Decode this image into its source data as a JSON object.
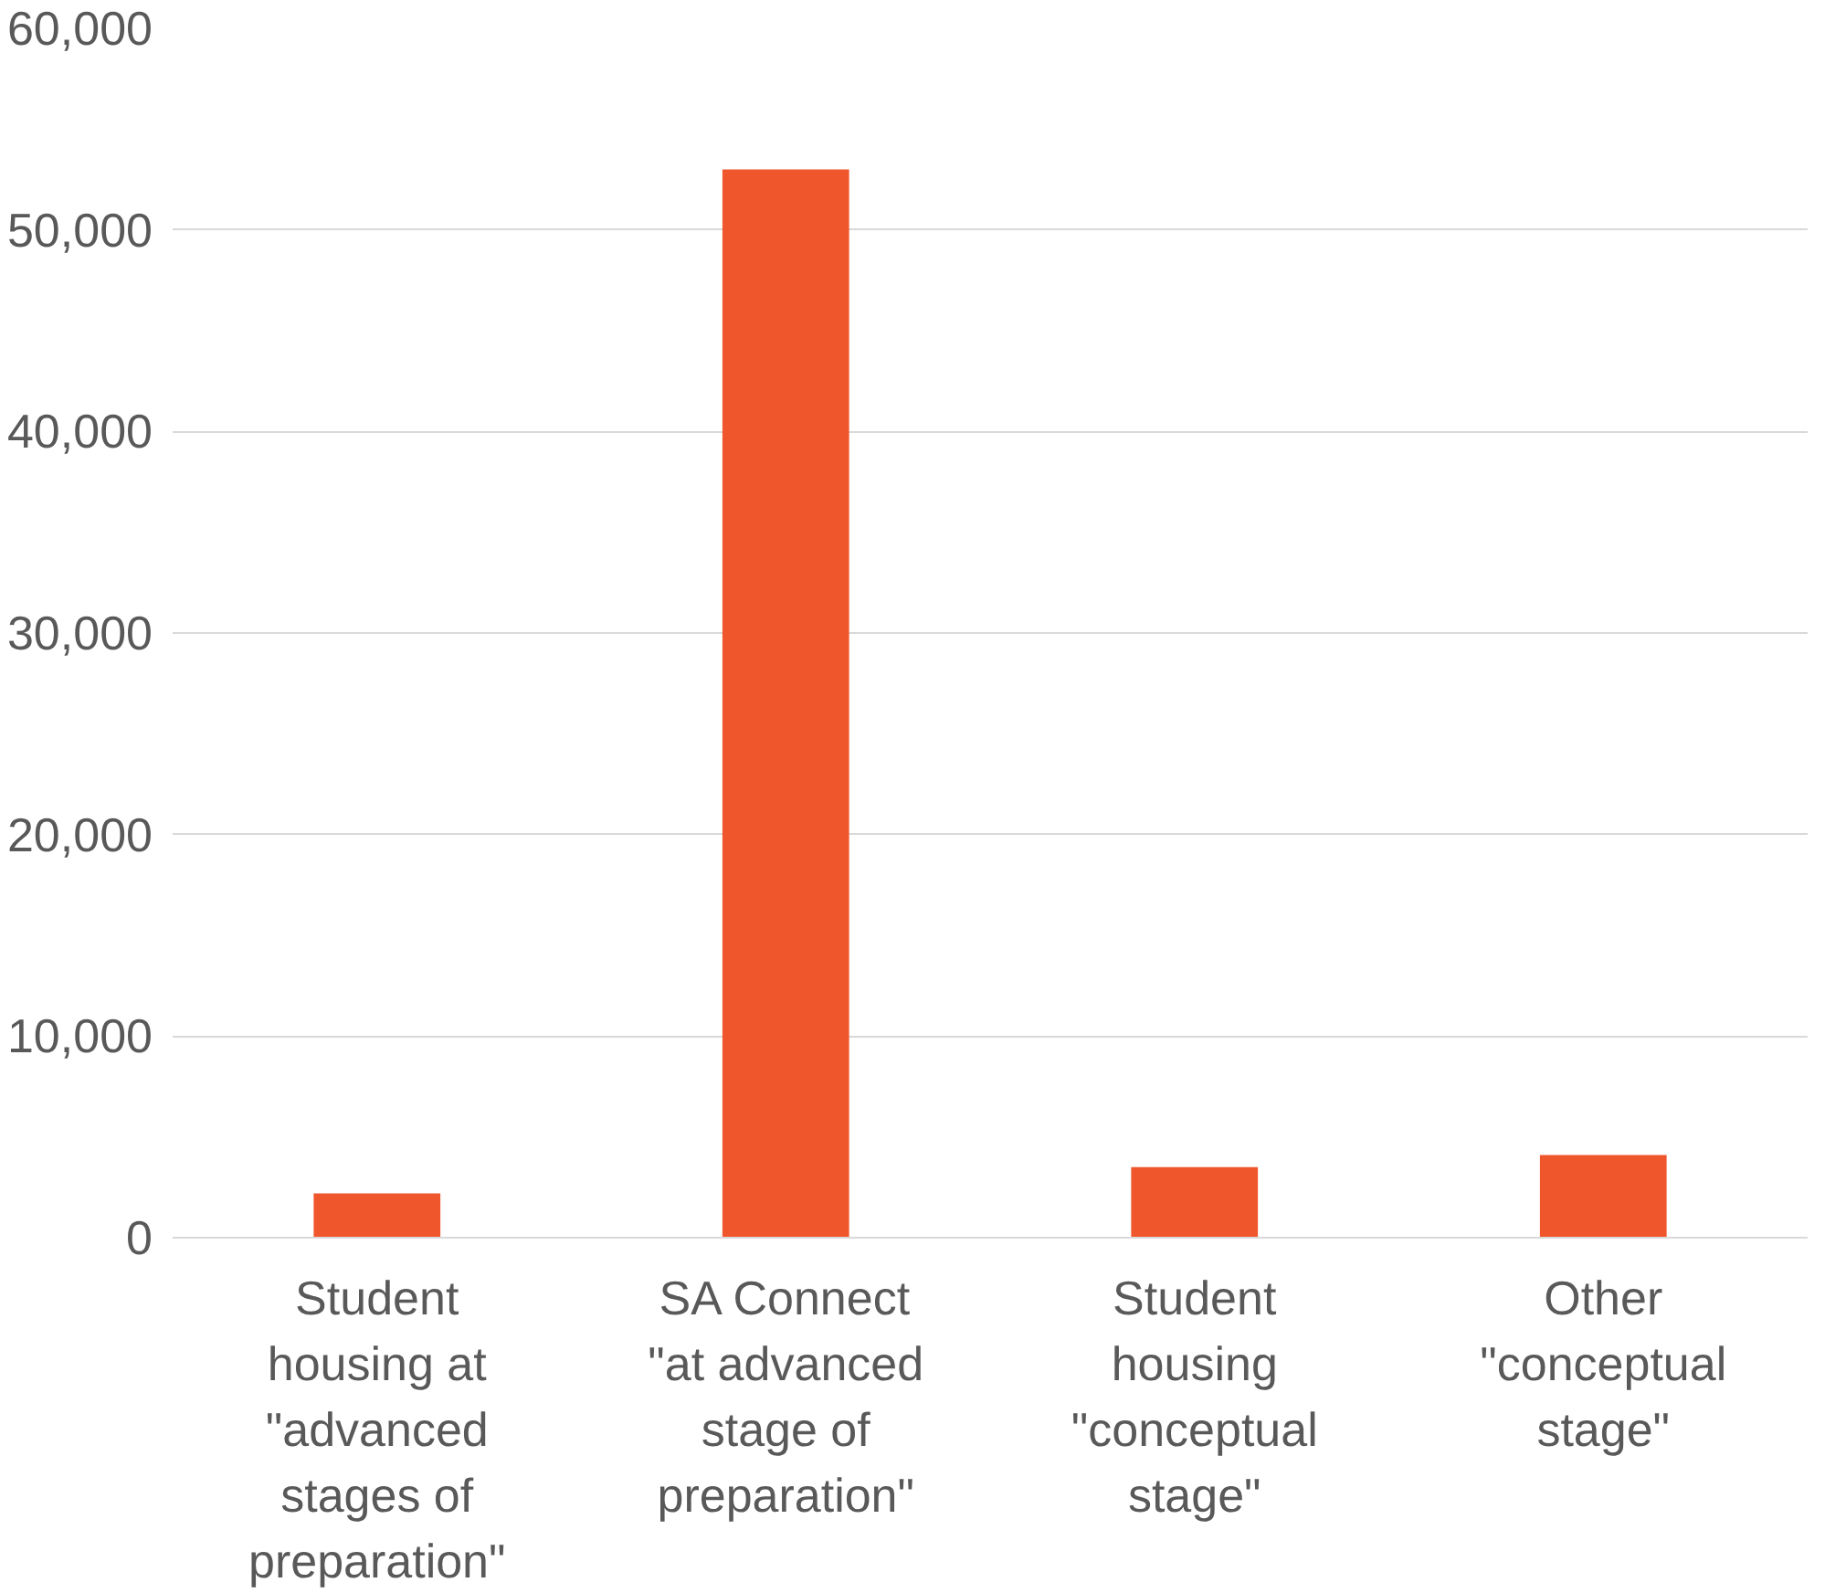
{
  "chart_data": {
    "type": "bar",
    "categories": [
      "Student housing at \"advanced stages of preparation\"",
      "SA Connect \"at advanced stage of preparation\"",
      "Student housing \"conceptual stage\"",
      "Other \"conceptual stage\""
    ],
    "values": [
      2200,
      53000,
      3500,
      4100
    ],
    "color": "#f0562b",
    "ylim": [
      0,
      60000
    ],
    "yticks": [
      {
        "value": 0,
        "label": "0"
      },
      {
        "value": 10000,
        "label": "10,000"
      },
      {
        "value": 20000,
        "label": "20,000"
      },
      {
        "value": 30000,
        "label": "30,000"
      },
      {
        "value": 40000,
        "label": "40,000"
      },
      {
        "value": 50000,
        "label": "50,000"
      },
      {
        "value": 60000,
        "label": "60,000"
      }
    ],
    "grid": "y"
  }
}
